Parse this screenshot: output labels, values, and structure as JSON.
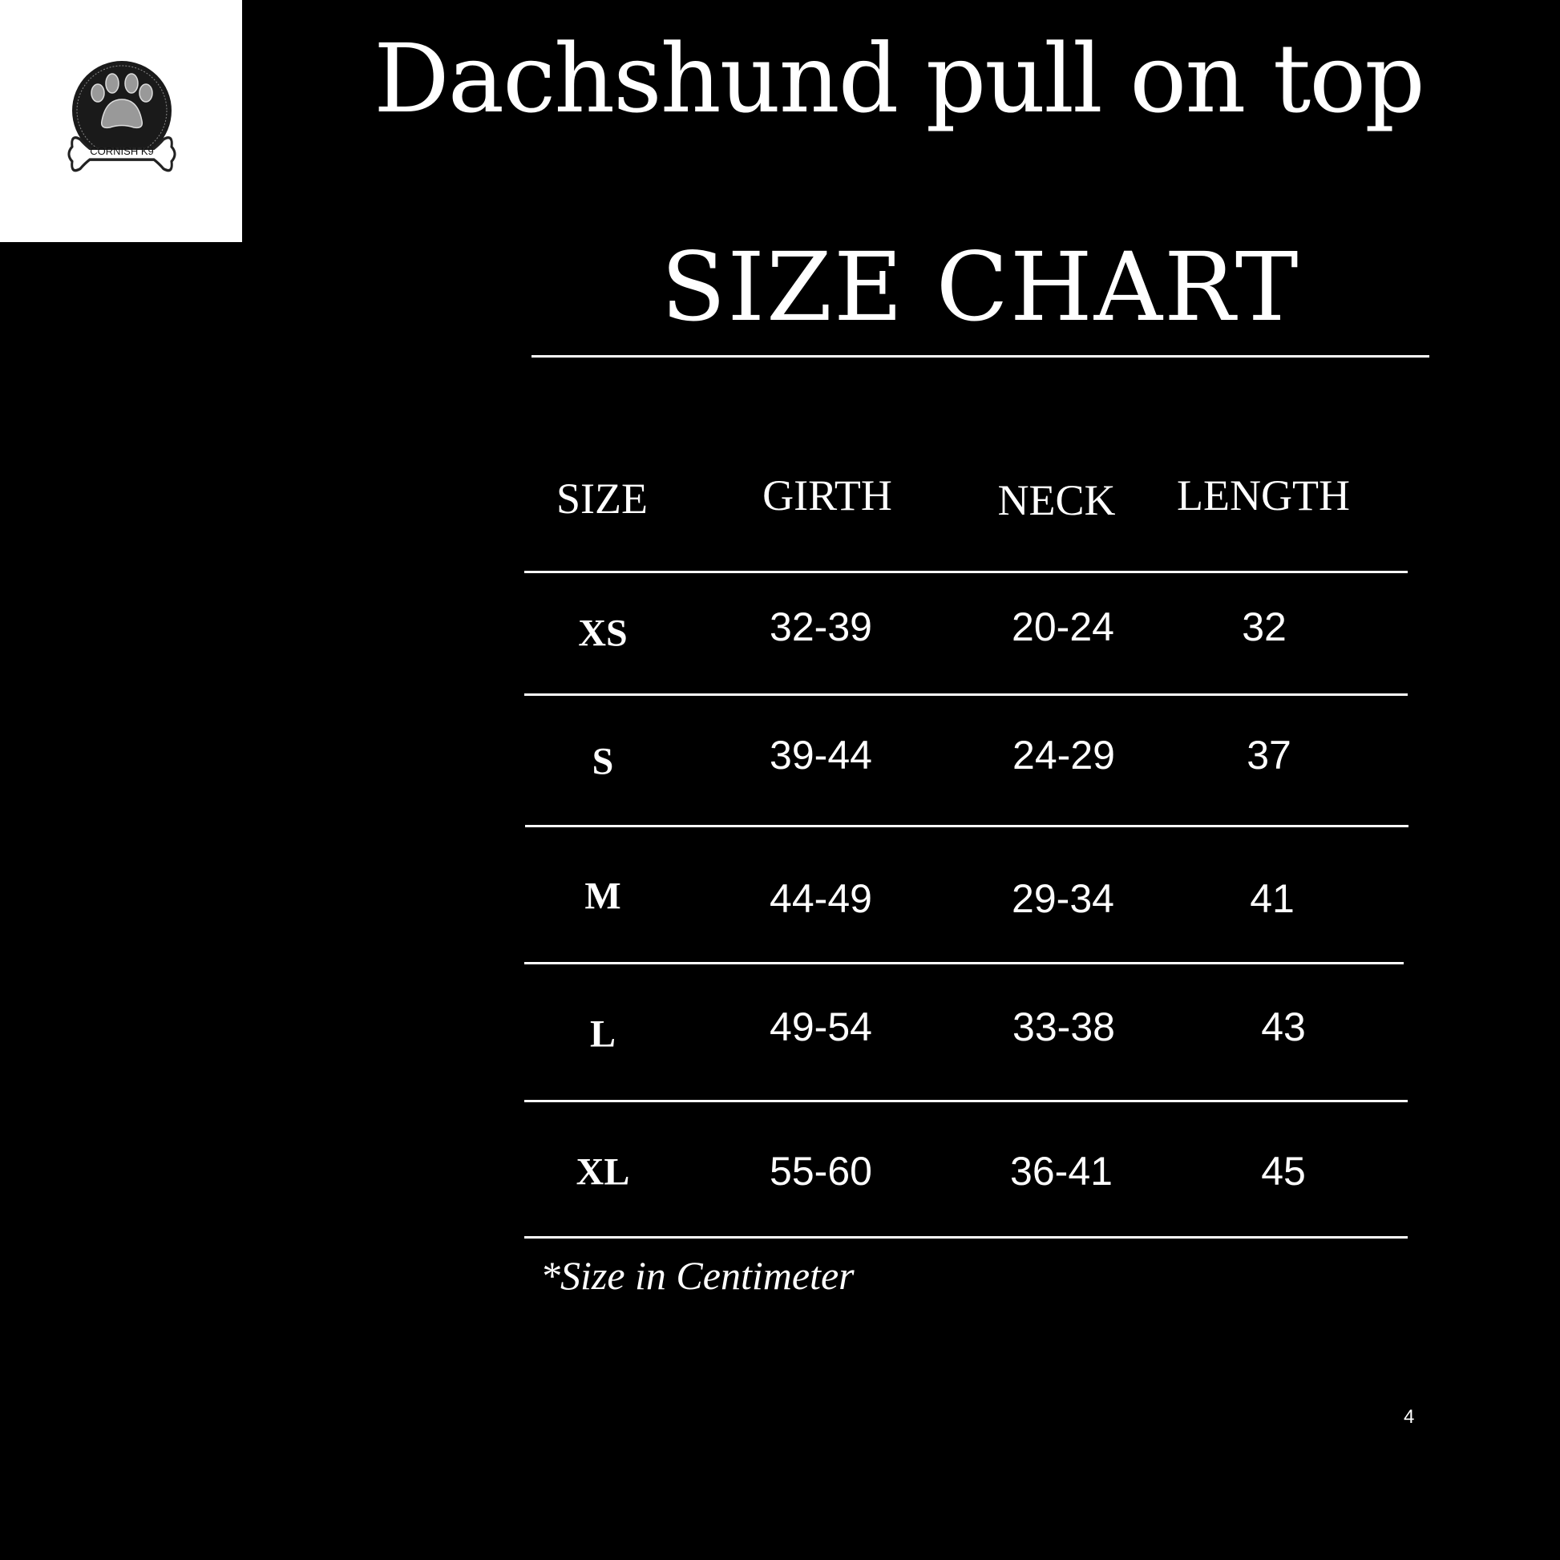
{
  "logo": {
    "text": "CORNISH K9"
  },
  "title": "Dachshund pull on top",
  "subtitle": "SIZE CHART",
  "table": {
    "headers": [
      "SIZE",
      "GIRTH",
      "NECK",
      "LENGTH"
    ],
    "rows": [
      {
        "size": "XS",
        "girth": "32-39",
        "neck": "20-24",
        "length": "32"
      },
      {
        "size": "S",
        "girth": "39-44",
        "neck": "24-29",
        "length": "37"
      },
      {
        "size": "M",
        "girth": "44-49",
        "neck": "29-34",
        "length": "41"
      },
      {
        "size": "L",
        "girth": "49-54",
        "neck": "33-38",
        "length": "43"
      },
      {
        "size": "XL",
        "girth": "55-60",
        "neck": "36-41",
        "length": "45"
      }
    ]
  },
  "note": "*Size in Centimeter",
  "page_number": "4"
}
